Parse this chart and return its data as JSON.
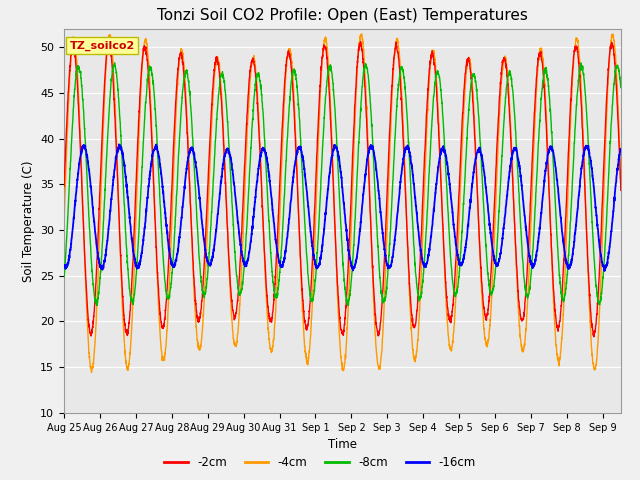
{
  "title": "Tonzi Soil CO2 Profile: Open (East) Temperatures",
  "xlabel": "Time",
  "ylabel": "Soil Temperature (C)",
  "ylim": [
    10,
    52
  ],
  "yticks": [
    10,
    15,
    20,
    25,
    30,
    35,
    40,
    45,
    50
  ],
  "legend_labels": [
    "-2cm",
    "-4cm",
    "-8cm",
    "-16cm"
  ],
  "legend_colors": [
    "#ff0000",
    "#ff9900",
    "#00bb00",
    "#0000ff"
  ],
  "plot_bg_color": "#e8e8e8",
  "fig_bg_color": "#f0f0f0",
  "grid_color": "#ffffff",
  "box_text": "TZ_soilco2",
  "xtick_labels": [
    "Aug 25",
    "Aug 26",
    "Aug 27",
    "Aug 28",
    "Aug 29",
    "Aug 30",
    "Aug 31",
    "Sep 1",
    "Sep 2",
    "Sep 3",
    "Sep 4",
    "Sep 5",
    "Sep 6",
    "Sep 7",
    "Sep 8",
    "Sep 9"
  ],
  "n_days": 15.5,
  "n_points": 3100,
  "title_fontsize": 11,
  "2cm_mean": 34.5,
  "2cm_amp": 15.0,
  "2cm_phase": 0.0,
  "4cm_mean": 33.0,
  "4cm_amp": 17.0,
  "4cm_phase": 0.02,
  "8cm_mean": 35.0,
  "8cm_amp": 12.5,
  "8cm_phase": 0.15,
  "16cm_mean": 32.5,
  "16cm_amp": 6.5,
  "16cm_phase": 0.3
}
